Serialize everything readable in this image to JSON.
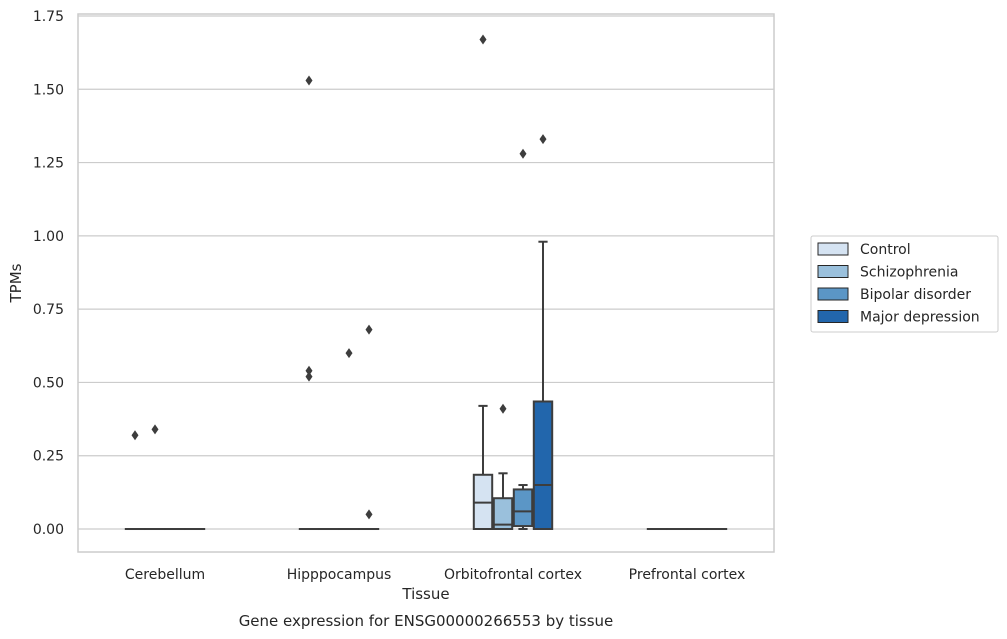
{
  "chart_data": {
    "type": "box",
    "caption": "Gene expression for ENSG00000266553 by tissue",
    "xlabel": "Tissue",
    "ylabel": "TPMs",
    "ylim": [
      -0.08,
      1.75
    ],
    "yticks": [
      0.0,
      0.25,
      0.5,
      0.75,
      1.0,
      1.25,
      1.5,
      1.75
    ],
    "ytick_labels": [
      "0.00",
      "0.25",
      "0.50",
      "0.75",
      "1.00",
      "1.25",
      "1.50",
      "1.75"
    ],
    "grid": true,
    "legend_position": "right",
    "categories": [
      "Cerebellum",
      "Hipppocampus",
      "Orbitofrontal cortex",
      "Prefrontal cortex"
    ],
    "series": [
      {
        "name": "Control",
        "color": "#d5e3f2",
        "boxes": [
          {
            "q1": 0,
            "median": 0,
            "q3": 0,
            "whisker_low": 0,
            "whisker_high": 0,
            "fliers": [
              0.32
            ]
          },
          {
            "q1": 0,
            "median": 0,
            "q3": 0,
            "whisker_low": 0,
            "whisker_high": 0,
            "fliers": [
              1.53,
              0.54,
              0.52
            ]
          },
          {
            "q1": 0,
            "median": 0.09,
            "q3": 0.185,
            "whisker_low": 0,
            "whisker_high": 0.42,
            "fliers": [
              1.67
            ]
          },
          {
            "q1": 0,
            "median": 0,
            "q3": 0,
            "whisker_low": 0,
            "whisker_high": 0,
            "fliers": []
          }
        ]
      },
      {
        "name": "Schizophrenia",
        "color": "#9ac0dc",
        "boxes": [
          {
            "q1": 0,
            "median": 0,
            "q3": 0,
            "whisker_low": 0,
            "whisker_high": 0,
            "fliers": [
              0.34
            ]
          },
          {
            "q1": 0,
            "median": 0,
            "q3": 0,
            "whisker_low": 0,
            "whisker_high": 0,
            "fliers": []
          },
          {
            "q1": 0,
            "median": 0.015,
            "q3": 0.105,
            "whisker_low": 0,
            "whisker_high": 0.19,
            "fliers": [
              0.41
            ]
          },
          {
            "q1": 0,
            "median": 0,
            "q3": 0,
            "whisker_low": 0,
            "whisker_high": 0,
            "fliers": []
          }
        ]
      },
      {
        "name": "Bipolar disorder",
        "color": "#5b96c6",
        "boxes": [
          {
            "q1": 0,
            "median": 0,
            "q3": 0,
            "whisker_low": 0,
            "whisker_high": 0,
            "fliers": []
          },
          {
            "q1": 0,
            "median": 0,
            "q3": 0,
            "whisker_low": 0,
            "whisker_high": 0,
            "fliers": [
              0.6
            ]
          },
          {
            "q1": 0.01,
            "median": 0.06,
            "q3": 0.135,
            "whisker_low": 0,
            "whisker_high": 0.15,
            "fliers": [
              1.28
            ]
          },
          {
            "q1": 0,
            "median": 0,
            "q3": 0,
            "whisker_low": 0,
            "whisker_high": 0,
            "fliers": []
          }
        ]
      },
      {
        "name": "Major depression",
        "color": "#2266ac",
        "boxes": [
          {
            "q1": 0,
            "median": 0,
            "q3": 0,
            "whisker_low": 0,
            "whisker_high": 0,
            "fliers": []
          },
          {
            "q1": 0,
            "median": 0,
            "q3": 0,
            "whisker_low": 0,
            "whisker_high": 0,
            "fliers": [
              0.68,
              0.05
            ]
          },
          {
            "q1": 0,
            "median": 0.15,
            "q3": 0.435,
            "whisker_low": 0,
            "whisker_high": 0.98,
            "fliers": [
              1.33
            ]
          },
          {
            "q1": 0,
            "median": 0,
            "q3": 0,
            "whisker_low": 0,
            "whisker_high": 0,
            "fliers": []
          }
        ]
      }
    ]
  }
}
